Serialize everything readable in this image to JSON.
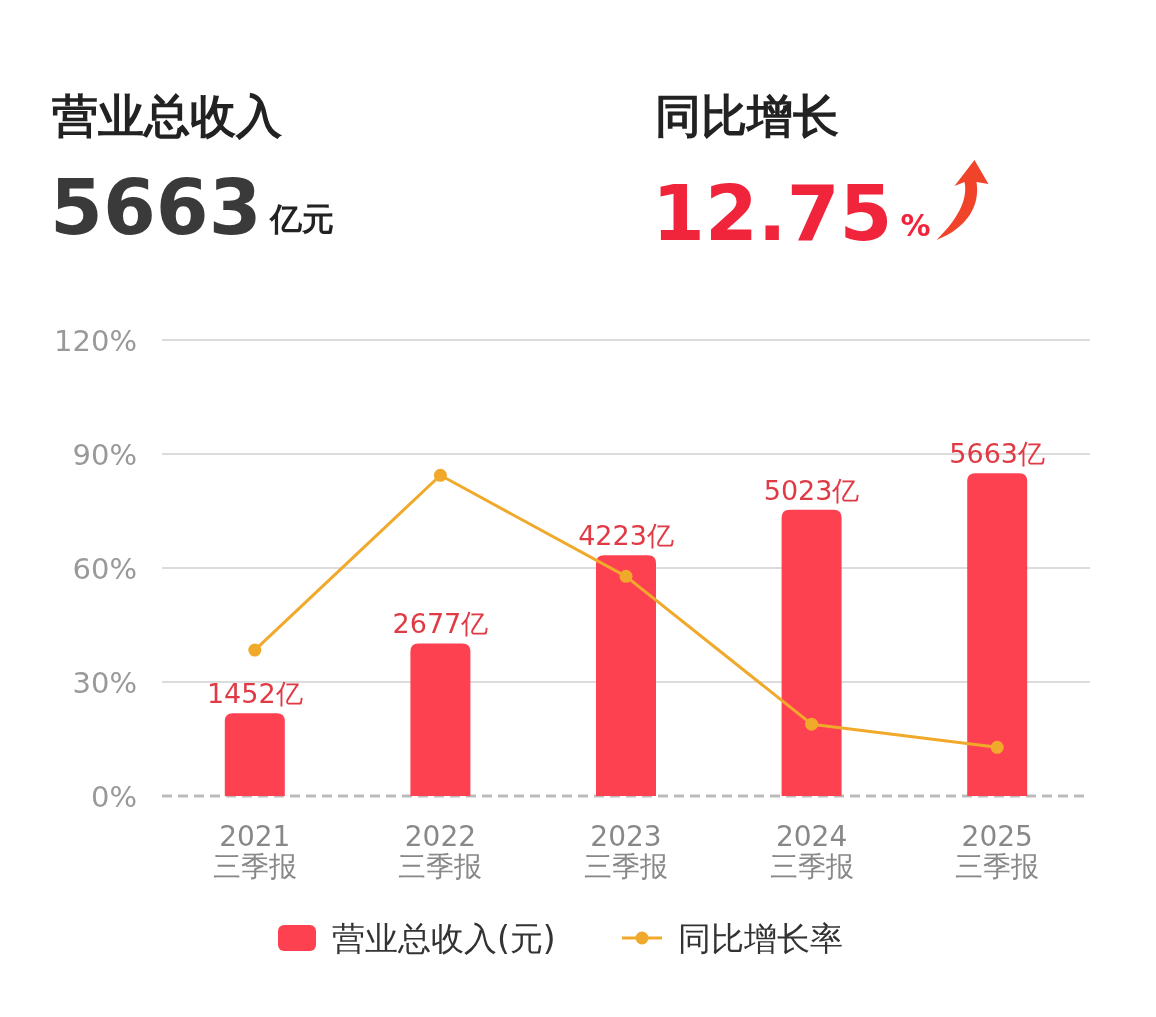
{
  "chart_data": {
    "type": "bar",
    "annotations": [
      "营业总收入",
      "5663",
      "亿元",
      "同比增长",
      "12.75",
      "%"
    ],
    "categories": [
      "2021\n三季报",
      "2022\n三季报",
      "2023\n三季报",
      "2024\n三季报",
      "2025\n三季报"
    ],
    "series": [
      {
        "name": "营业总收入(元)",
        "axis": "y2",
        "color": "#fe4150",
        "values": [
          1452,
          2677,
          4223,
          5023,
          5663
        ],
        "value_labels": [
          "1452亿",
          "2677亿",
          "4223亿",
          "5023亿",
          "5663亿"
        ]
      },
      {
        "name": "同比增长率",
        "type": "line",
        "color": "#f0a92a",
        "marker": "circle",
        "line_style": "solid",
        "values": [
          38.4,
          84.4,
          57.8,
          18.9,
          12.8
        ]
      }
    ],
    "ylim": [
      0,
      120
    ],
    "yticks": [
      {
        "value": 0,
        "label": "0%"
      },
      {
        "value": 30,
        "label": "30%"
      },
      {
        "value": 60,
        "label": "60%"
      },
      {
        "value": 90,
        "label": "90%"
      },
      {
        "value": 120,
        "label": "120%"
      }
    ],
    "y2lim": [
      0,
      8000
    ],
    "grid": "y",
    "legend": "bottom"
  }
}
